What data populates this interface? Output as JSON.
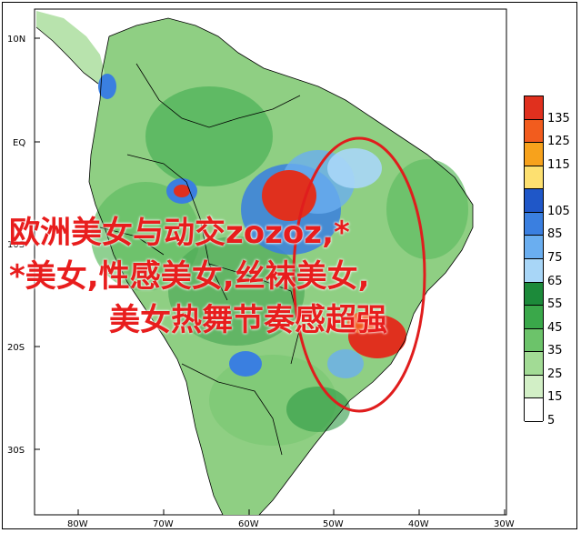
{
  "map": {
    "lat_labels": [
      "10N",
      "EQ",
      "10S",
      "20S",
      "30S"
    ],
    "lon_labels": [
      "80W",
      "70W",
      "60W",
      "50W",
      "40W",
      "30W"
    ]
  },
  "legend": {
    "levels": [
      {
        "value": "135",
        "color": "#e0301e"
      },
      {
        "value": "125",
        "color": "#f25c1e"
      },
      {
        "value": "115",
        "color": "#f7a21c"
      },
      {
        "value": "",
        "color": "#fde070"
      },
      {
        "value": "105",
        "color": "#1f57c8"
      },
      {
        "value": "85",
        "color": "#3a7fe0"
      },
      {
        "value": "75",
        "color": "#6aaef0"
      },
      {
        "value": "65",
        "color": "#a8d6f7"
      },
      {
        "value": "55",
        "color": "#1c8a3a"
      },
      {
        "value": "45",
        "color": "#3aa84a"
      },
      {
        "value": "35",
        "color": "#6cc36a"
      },
      {
        "value": "25",
        "color": "#a2db95"
      },
      {
        "value": "15",
        "color": "#d2efc6"
      },
      {
        "value": "5",
        "color": "#ffffff"
      }
    ]
  },
  "overlay": {
    "line1": "欧洲美女与动交zozoz,*",
    "line2": "*美女,性感美女,丝袜美女,",
    "line3": "美女热舞节奏感超强"
  },
  "colors": {
    "land_green": "#8fcf83",
    "dark_green": "#2e9a45",
    "blue": "#3a7fe0",
    "red": "#e0301e",
    "highlight_ellipse": "#e01d1d"
  }
}
